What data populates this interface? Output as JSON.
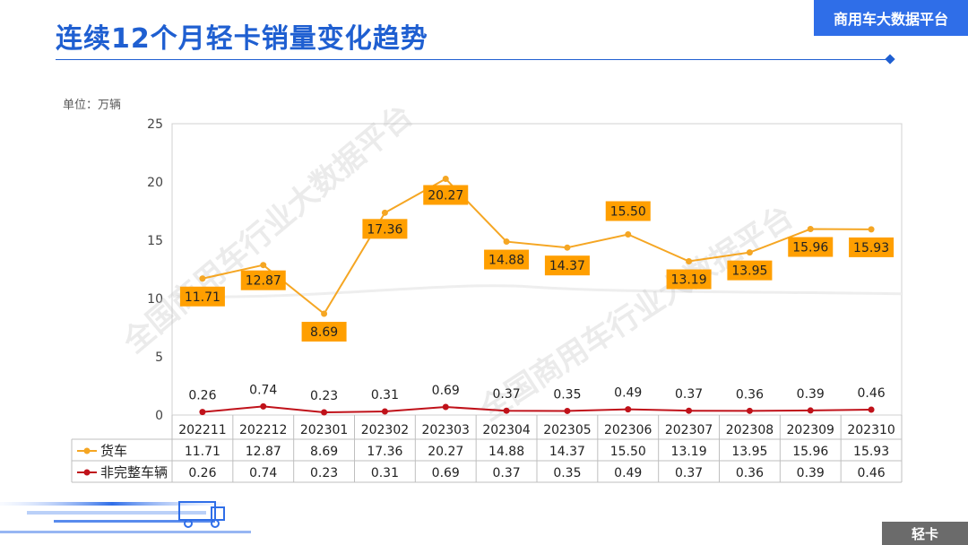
{
  "header": {
    "title": "连续12个月轻卡销量变化趋势",
    "brand": "商用车大数据平台",
    "unit": "单位：万辆",
    "corner_tag": "轻卡",
    "watermark": "全国商用车行业大数据平台"
  },
  "colors": {
    "accent": "#1f5fd1",
    "brand_bg": "#2f6ee8",
    "series_truck": "#f5a623",
    "series_incomplete": "#c0121a",
    "label_bg": "#ff9f00"
  },
  "chart_data": {
    "type": "line",
    "title": "连续12个月轻卡销量变化趋势",
    "ylabel": "单位：万辆",
    "ylim": [
      0,
      25
    ],
    "yticks": [
      0,
      5,
      10,
      15,
      20,
      25
    ],
    "categories": [
      "202211",
      "202212",
      "202301",
      "202302",
      "202303",
      "202304",
      "202305",
      "202306",
      "202307",
      "202308",
      "202309",
      "202310"
    ],
    "series": [
      {
        "name": "货车",
        "values": [
          11.71,
          12.87,
          8.69,
          17.36,
          20.27,
          14.88,
          14.37,
          15.5,
          13.19,
          13.95,
          15.96,
          15.93
        ],
        "labels": [
          "11.71",
          "12.87",
          "8.69",
          "17.36",
          "20.27",
          "14.88",
          "14.37",
          "15.50",
          "13.19",
          "13.95",
          "15.96",
          "15.93"
        ]
      },
      {
        "name": "非完整车辆",
        "values": [
          0.26,
          0.74,
          0.23,
          0.31,
          0.69,
          0.37,
          0.35,
          0.49,
          0.37,
          0.36,
          0.39,
          0.46
        ],
        "labels": [
          "0.26",
          "0.74",
          "0.23",
          "0.31",
          "0.69",
          "0.37",
          "0.35",
          "0.49",
          "0.37",
          "0.36",
          "0.39",
          "0.46"
        ]
      }
    ],
    "legend": "data-table-left",
    "grid": false
  }
}
